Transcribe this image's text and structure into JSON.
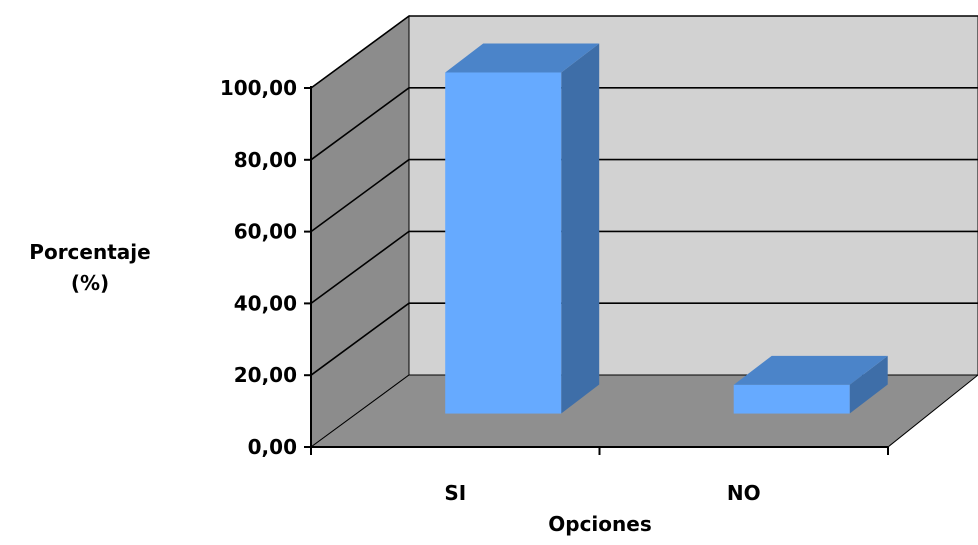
{
  "chart_data": {
    "type": "bar",
    "categories": [
      "SI",
      "NO"
    ],
    "values": [
      95.0,
      8.0
    ],
    "xlabel": "Opciones",
    "ylabel": [
      "Porcentaje",
      "(%)"
    ],
    "ylim": [
      0,
      100
    ],
    "yticks": [
      "0,00",
      "20,00",
      "40,00",
      "60,00",
      "80,00",
      "100,00"
    ],
    "grid": true,
    "legend": "none",
    "style": "3d-column"
  },
  "colors": {
    "bar_front": "#66aaff",
    "bar_top": "#4b84c9",
    "bar_side": "#3e6ea8",
    "back_wall": "#d2d2d2",
    "side_wall": "#8c8c8c",
    "floor": "#8f8f8f",
    "gridline": "#000000"
  }
}
